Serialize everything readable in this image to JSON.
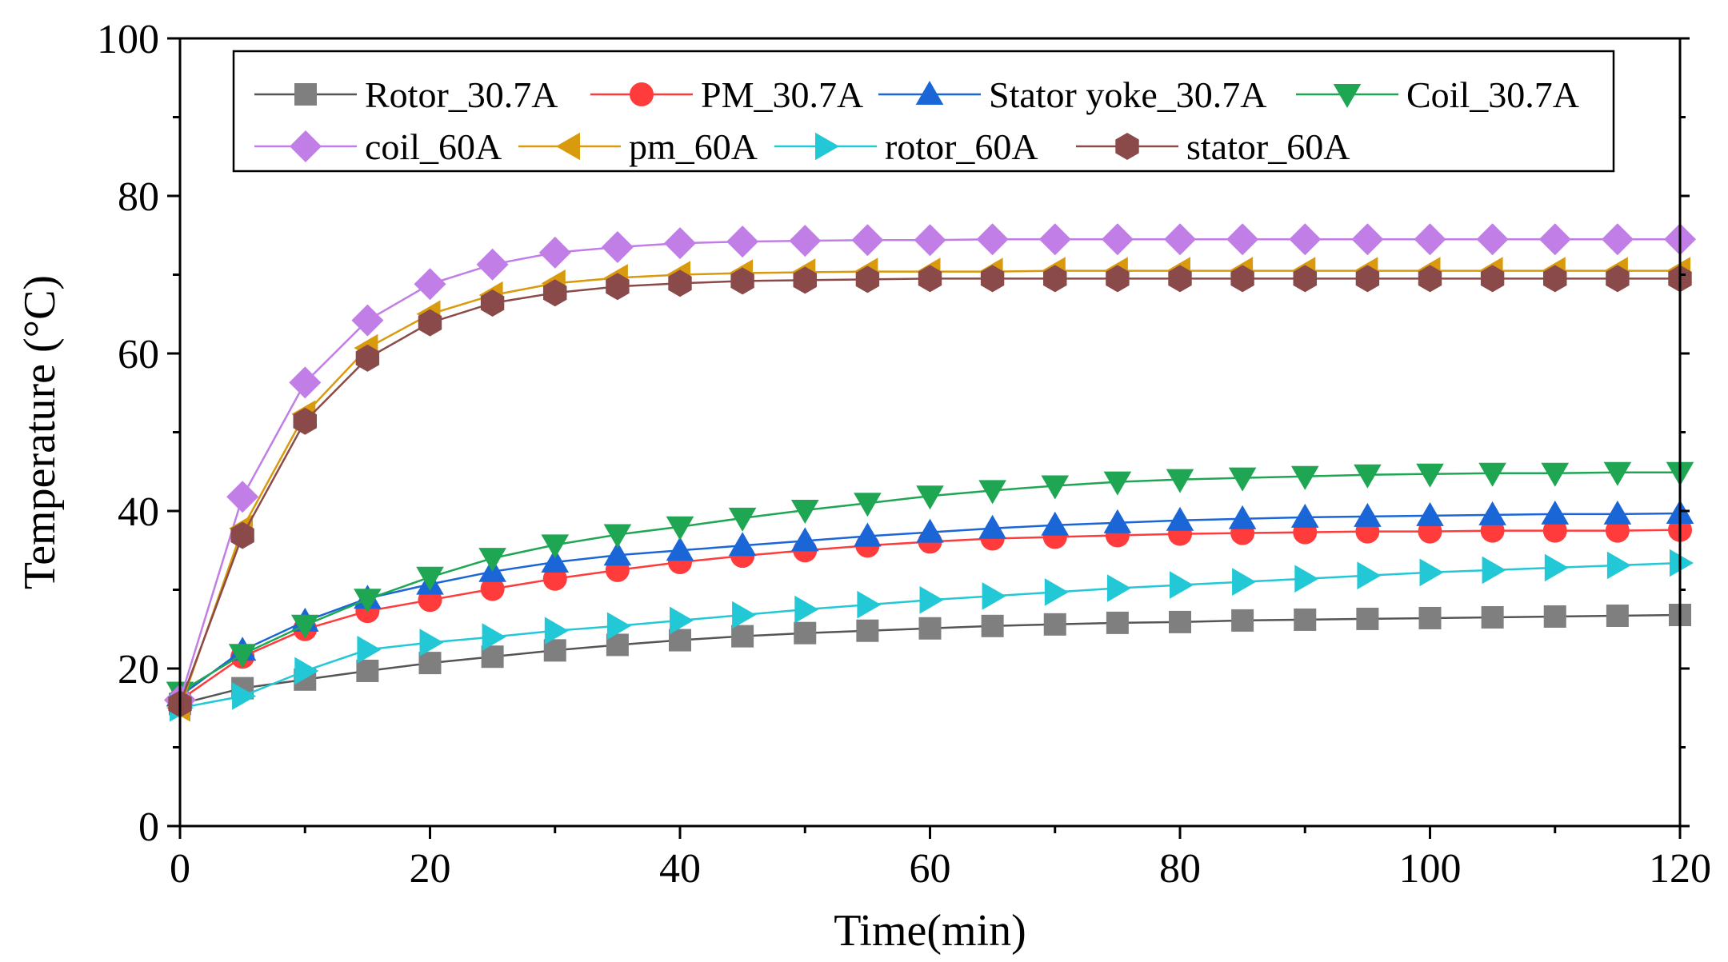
{
  "chart_data": {
    "type": "line",
    "xlabel": "Time(min)",
    "ylabel": "Temperature (°C)",
    "xlim": [
      0,
      120
    ],
    "ylim": [
      0,
      100
    ],
    "xticks": [
      0,
      20,
      40,
      60,
      80,
      100,
      120
    ],
    "yticks": [
      0,
      20,
      40,
      60,
      80,
      100
    ],
    "x": [
      0,
      5,
      10,
      15,
      20,
      25,
      30,
      35,
      40,
      45,
      50,
      55,
      60,
      65,
      70,
      75,
      80,
      85,
      90,
      95,
      100,
      105,
      110,
      115,
      120
    ],
    "legend_position": "top",
    "series": [
      {
        "name": "Rotor_30.7A",
        "marker": "square",
        "color": "#7f7f7f",
        "line_color": "#555555",
        "values": [
          15.5,
          17.5,
          18.6,
          19.7,
          20.7,
          21.5,
          22.3,
          23.0,
          23.6,
          24.1,
          24.5,
          24.8,
          25.1,
          25.4,
          25.6,
          25.8,
          25.9,
          26.1,
          26.2,
          26.3,
          26.4,
          26.5,
          26.6,
          26.7,
          26.8
        ]
      },
      {
        "name": "PM_30.7A",
        "marker": "circle",
        "color": "#ff3b3b",
        "line_color": "#ff3b3b",
        "values": [
          16.0,
          21.5,
          25.0,
          27.3,
          28.7,
          30.1,
          31.4,
          32.5,
          33.5,
          34.3,
          35.0,
          35.6,
          36.1,
          36.5,
          36.7,
          36.9,
          37.1,
          37.2,
          37.3,
          37.4,
          37.4,
          37.5,
          37.5,
          37.5,
          37.6
        ]
      },
      {
        "name": "Stator yoke_30.7A",
        "marker": "triangle-up",
        "color": "#1a66d6",
        "line_color": "#1a66d6",
        "values": [
          16.5,
          22.3,
          26.0,
          28.9,
          30.7,
          32.3,
          33.5,
          34.4,
          35.0,
          35.6,
          36.2,
          36.8,
          37.3,
          37.8,
          38.2,
          38.5,
          38.8,
          39.0,
          39.2,
          39.3,
          39.4,
          39.5,
          39.6,
          39.6,
          39.7
        ]
      },
      {
        "name": "Coil_30.7A",
        "marker": "triangle-down",
        "color": "#1fa653",
        "line_color": "#1fa653",
        "values": [
          17.0,
          21.8,
          25.5,
          28.8,
          31.6,
          34.0,
          35.7,
          37.0,
          38.0,
          39.1,
          40.1,
          41.0,
          41.9,
          42.6,
          43.2,
          43.7,
          44.0,
          44.2,
          44.4,
          44.6,
          44.7,
          44.8,
          44.8,
          44.9,
          44.9
        ]
      },
      {
        "name": "coil_60A",
        "marker": "diamond",
        "color": "#c07ee6",
        "line_color": "#c07ee6",
        "values": [
          16.0,
          41.8,
          56.3,
          64.2,
          68.8,
          71.3,
          72.8,
          73.5,
          74.0,
          74.2,
          74.3,
          74.4,
          74.4,
          74.5,
          74.5,
          74.5,
          74.5,
          74.5,
          74.5,
          74.5,
          74.5,
          74.5,
          74.5,
          74.5,
          74.5
        ]
      },
      {
        "name": "pm_60A",
        "marker": "triangle-left",
        "color": "#d99a0e",
        "line_color": "#d99a0e",
        "values": [
          15.0,
          37.8,
          52.3,
          60.7,
          65.0,
          67.4,
          68.9,
          69.6,
          70.0,
          70.2,
          70.3,
          70.4,
          70.4,
          70.4,
          70.5,
          70.5,
          70.5,
          70.5,
          70.5,
          70.5,
          70.5,
          70.5,
          70.5,
          70.5,
          70.5
        ]
      },
      {
        "name": "rotor_60A",
        "marker": "triangle-right",
        "color": "#22c8d6",
        "line_color": "#22c8d6",
        "values": [
          15.0,
          16.5,
          19.7,
          22.4,
          23.3,
          24.0,
          24.8,
          25.4,
          26.1,
          26.8,
          27.5,
          28.1,
          28.7,
          29.2,
          29.7,
          30.2,
          30.6,
          31.0,
          31.4,
          31.8,
          32.2,
          32.5,
          32.8,
          33.1,
          33.4
        ]
      },
      {
        "name": "stator_60A",
        "marker": "hexagon",
        "color": "#8b4a4a",
        "line_color": "#8b4a4a",
        "values": [
          15.5,
          36.9,
          51.4,
          59.4,
          63.9,
          66.4,
          67.7,
          68.5,
          68.9,
          69.2,
          69.3,
          69.4,
          69.5,
          69.5,
          69.5,
          69.5,
          69.5,
          69.5,
          69.5,
          69.5,
          69.5,
          69.5,
          69.5,
          69.5,
          69.5
        ]
      }
    ]
  }
}
